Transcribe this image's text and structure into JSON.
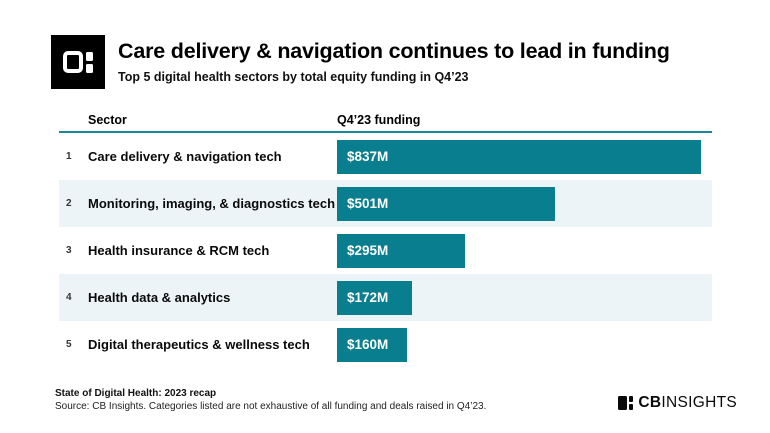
{
  "header": {
    "title": "Care delivery & navigation continues to lead in funding",
    "subtitle": "Top 5 digital health sectors by total equity funding in Q4’23"
  },
  "chart_data": {
    "type": "bar",
    "orientation": "horizontal",
    "title": "Care delivery & navigation continues to lead in funding",
    "subtitle": "Top 5 digital health sectors by total equity funding in Q4’23",
    "columns": {
      "sector": "Sector",
      "funding": "Q4’23 funding"
    },
    "ranks": [
      "1",
      "2",
      "3",
      "4",
      "5"
    ],
    "categories": [
      "Care delivery & navigation tech",
      "Monitoring, imaging, & diagnostics tech",
      "Health insurance & RCM tech",
      "Health data & analytics",
      "Digital therapeutics & wellness tech"
    ],
    "values": [
      837,
      501,
      295,
      172,
      160
    ],
    "value_labels": [
      "$837M",
      "$501M",
      "$295M",
      "$172M",
      "$160M"
    ],
    "value_unit": "USD millions",
    "xlim": [
      0,
      860
    ],
    "grid": false,
    "legend": null,
    "bar_color": "#097e8f",
    "stripe_color": "#edf4f7",
    "rule_color": "#1a879b",
    "bar_label_color": "#ffffff"
  },
  "footer": {
    "note_bold": "State of Digital Health: 2023 recap",
    "note_source": "Source: CB Insights. Categories listed are not exhaustive of all funding and deals raised in Q4’23.",
    "brand_cb": "CB",
    "brand_insights": "INSIGHTS"
  }
}
